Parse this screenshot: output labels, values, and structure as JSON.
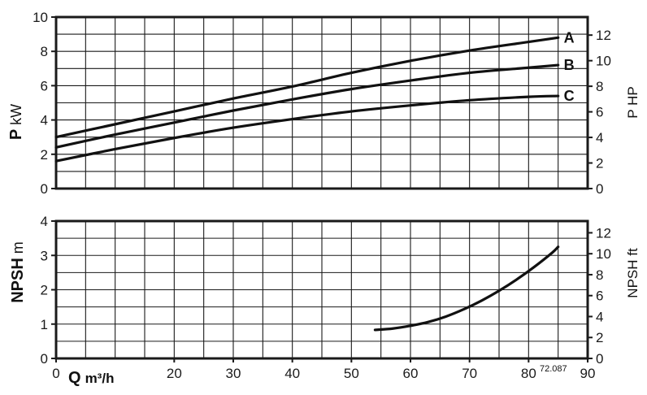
{
  "figure_code": "72.087",
  "chart_data": [
    {
      "type": "line",
      "panel": "power",
      "ylabel": "P",
      "ylabel_unit": "kW",
      "ylabel_right": "P HP",
      "xlim": [
        0,
        90
      ],
      "ylim": [
        0,
        10
      ],
      "ylim_right": [
        0,
        13.41
      ],
      "y_ticks": [
        0,
        2,
        4,
        6,
        8,
        10
      ],
      "y_ticks_right": [
        0,
        2,
        4,
        6,
        8,
        10,
        12
      ],
      "x_grid_step": 5,
      "y_grid_step": 1,
      "grid": true,
      "series": [
        {
          "name": "A",
          "x": [
            0,
            10,
            20,
            30,
            40,
            50,
            60,
            70,
            80,
            85
          ],
          "y": [
            3.0,
            3.75,
            4.5,
            5.25,
            5.95,
            6.75,
            7.45,
            8.05,
            8.55,
            8.8
          ]
        },
        {
          "name": "B",
          "x": [
            0,
            10,
            20,
            30,
            40,
            50,
            60,
            70,
            80,
            85
          ],
          "y": [
            2.4,
            3.15,
            3.85,
            4.55,
            5.2,
            5.8,
            6.3,
            6.75,
            7.05,
            7.2
          ]
        },
        {
          "name": "C",
          "x": [
            0,
            10,
            20,
            30,
            40,
            50,
            60,
            70,
            80,
            85
          ],
          "y": [
            1.6,
            2.3,
            2.95,
            3.55,
            4.05,
            4.5,
            4.85,
            5.15,
            5.35,
            5.4
          ]
        }
      ]
    },
    {
      "type": "line",
      "panel": "npsh",
      "ylabel": "NPSH",
      "ylabel_unit": "m",
      "ylabel_right": "NPSH ft",
      "xlabel": "Q",
      "xlabel_unit": "m³/h",
      "xlim": [
        0,
        90
      ],
      "ylim": [
        0,
        4
      ],
      "ylim_right": [
        0,
        13.12
      ],
      "x_ticks": [
        0,
        20,
        30,
        40,
        50,
        60,
        70,
        80,
        90
      ],
      "y_ticks": [
        0,
        1,
        2,
        3,
        4
      ],
      "y_ticks_right": [
        0,
        2,
        4,
        6,
        8,
        10,
        12
      ],
      "x_grid_step": 5,
      "y_grid_step": 0.5,
      "grid": true,
      "series": [
        {
          "x": [
            54,
            57,
            60,
            63,
            66,
            69,
            72,
            75,
            78,
            81,
            84,
            85
          ],
          "y": [
            0.83,
            0.87,
            0.95,
            1.06,
            1.22,
            1.43,
            1.68,
            1.97,
            2.3,
            2.67,
            3.08,
            3.25
          ]
        }
      ]
    }
  ]
}
